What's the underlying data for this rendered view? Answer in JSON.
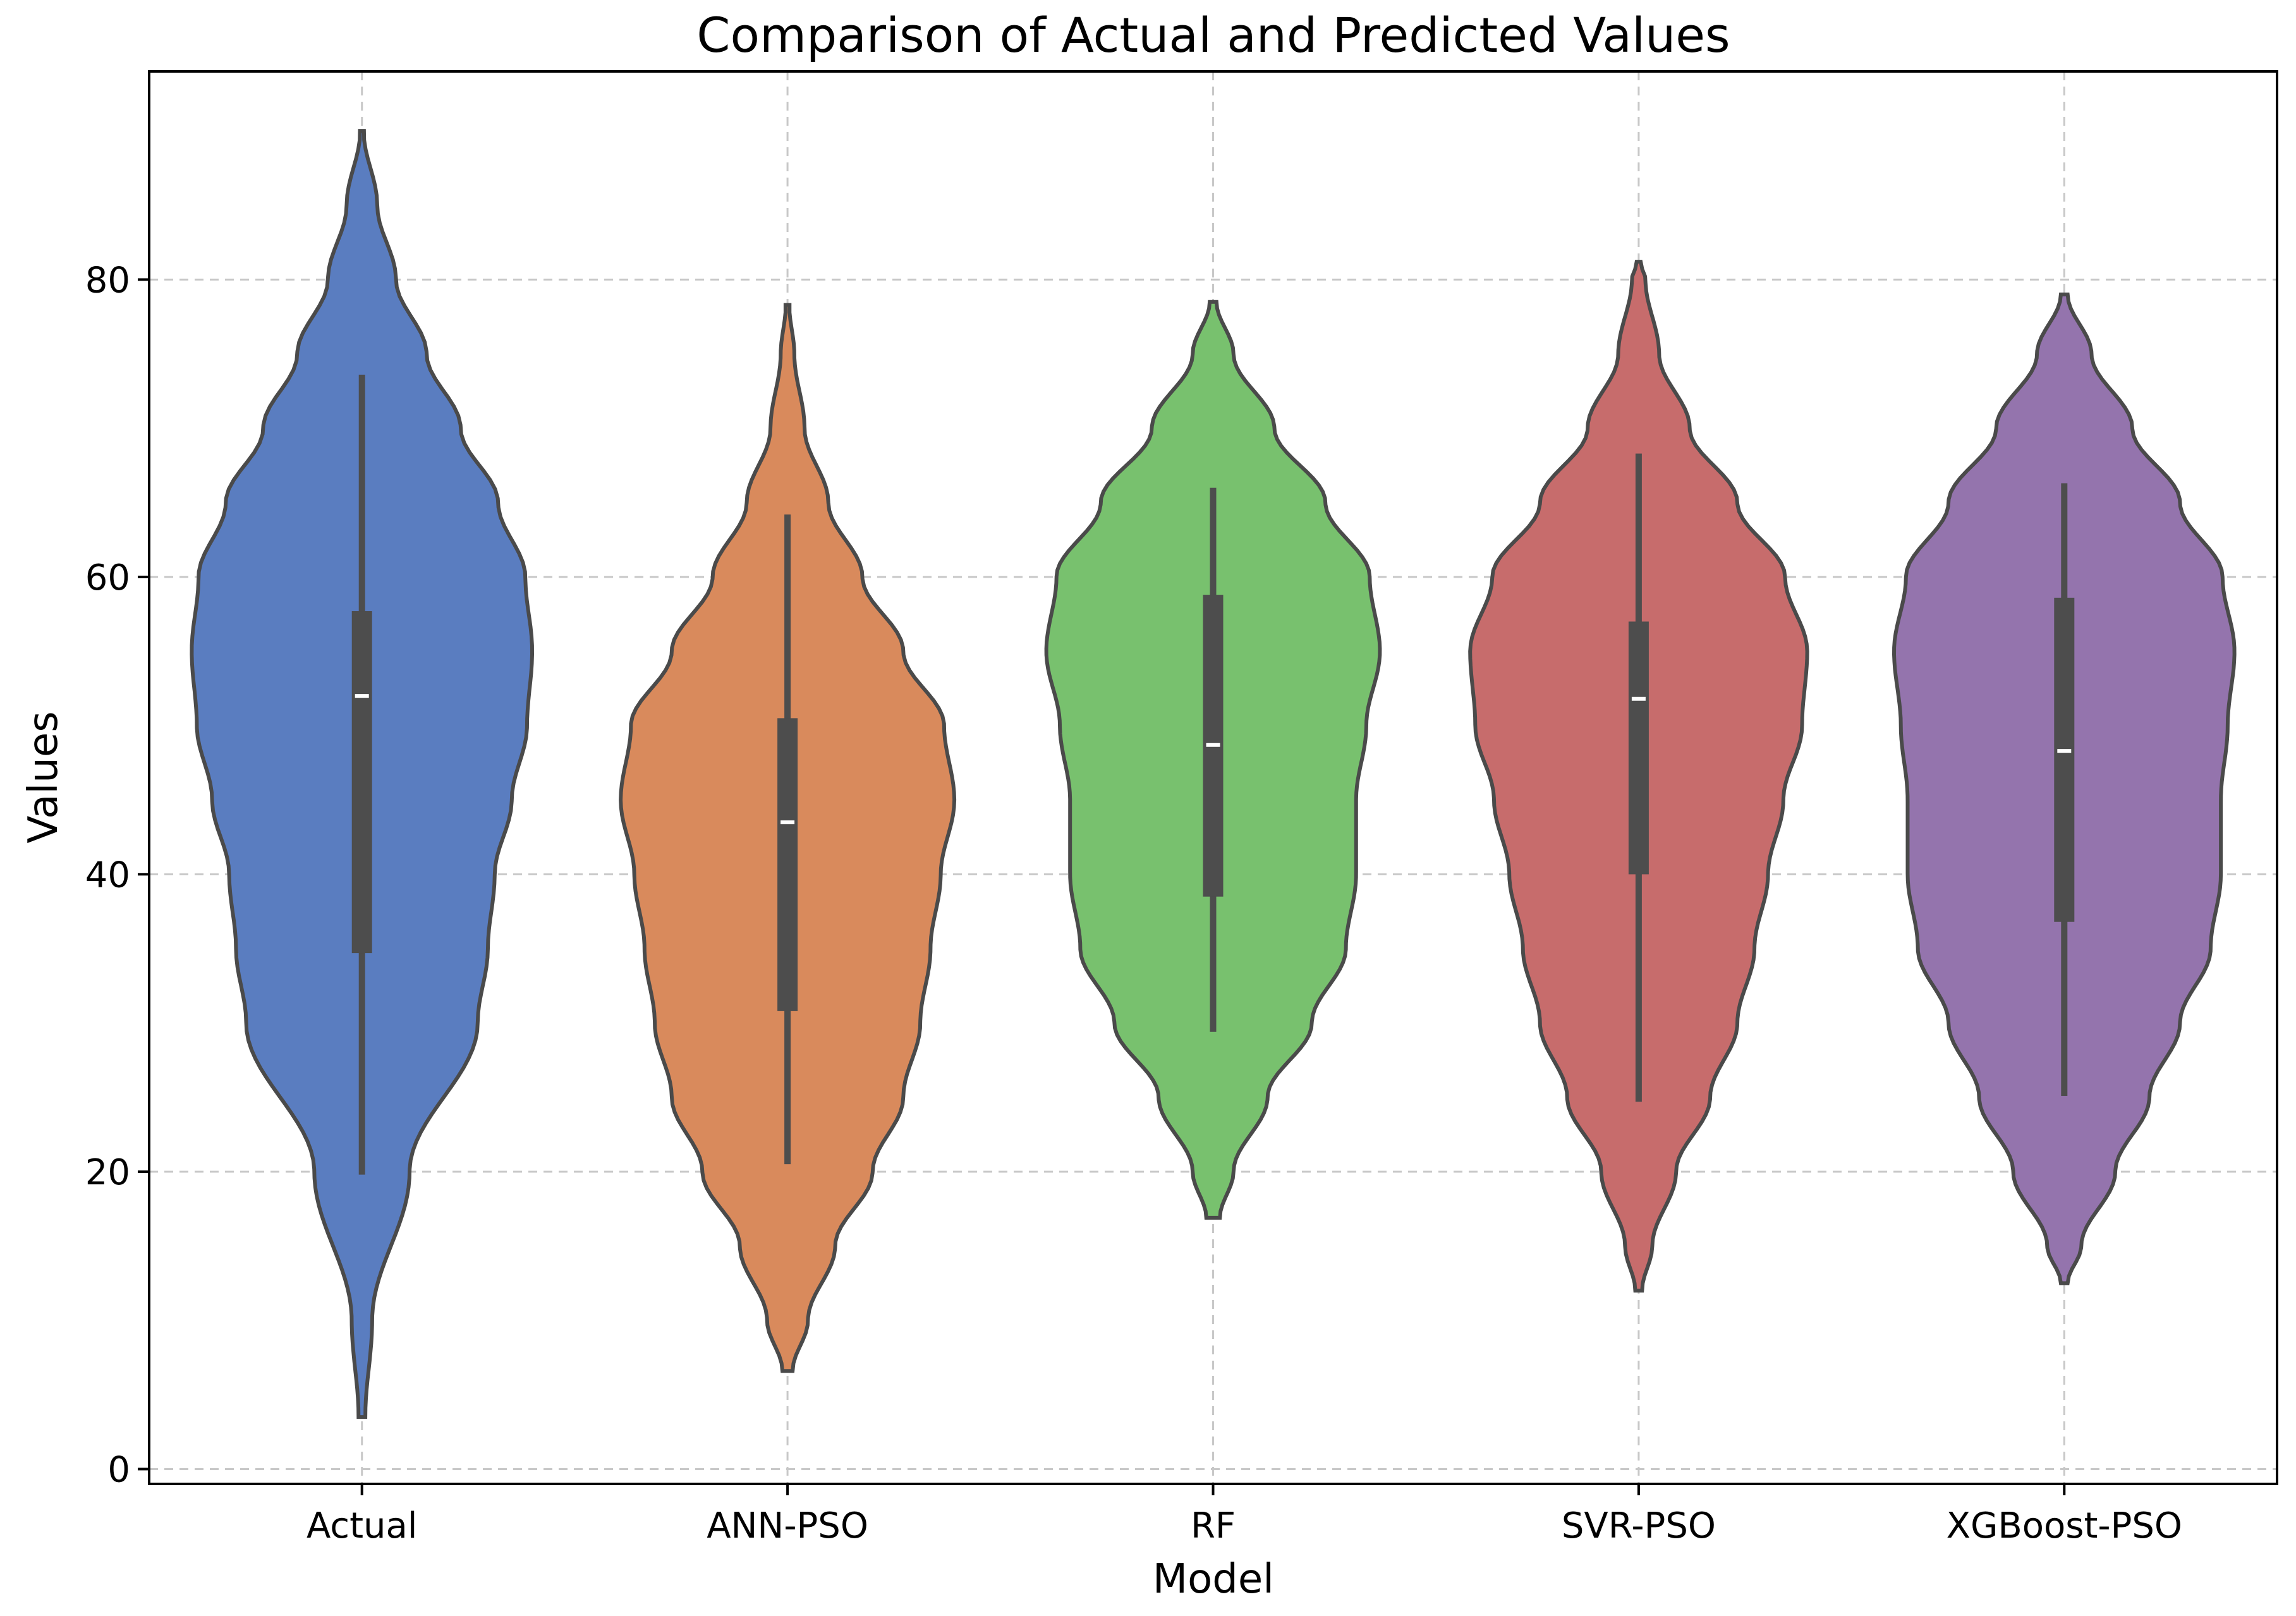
{
  "chart_data": {
    "type": "violin",
    "title": "Comparison of Actual and Predicted Values",
    "xlabel": "Model",
    "ylabel": "Values",
    "ylim": [
      -1,
      94
    ],
    "yticks": [
      0,
      20,
      40,
      60,
      80
    ],
    "grid": true,
    "categories": [
      "Actual",
      "ANN-PSO",
      "RF",
      "SVR-PSO",
      "XGBoost-PSO"
    ],
    "series": [
      {
        "name": "Actual",
        "color": "#5a7dc0",
        "min": 3.5,
        "max": 90.0,
        "q1": 34.7,
        "median": 52.0,
        "q3": 57.7,
        "whisker_low": 19.8,
        "whisker_high": 73.6,
        "density": [
          [
            3.5,
            0.02
          ],
          [
            10,
            0.06
          ],
          [
            20,
            0.28
          ],
          [
            30,
            0.68
          ],
          [
            35,
            0.74
          ],
          [
            40,
            0.78
          ],
          [
            45,
            0.88
          ],
          [
            50,
            0.97
          ],
          [
            55,
            1.0
          ],
          [
            60,
            0.96
          ],
          [
            65,
            0.8
          ],
          [
            70,
            0.58
          ],
          [
            75,
            0.38
          ],
          [
            80,
            0.2
          ],
          [
            85,
            0.09
          ],
          [
            90,
            0.01
          ]
        ]
      },
      {
        "name": "ANN-PSO",
        "color": "#d98a5c",
        "min": 6.6,
        "max": 78.3,
        "q1": 30.8,
        "median": 43.5,
        "q3": 50.5,
        "whisker_low": 20.5,
        "whisker_high": 64.2,
        "density": [
          [
            6.6,
            0.03
          ],
          [
            10,
            0.12
          ],
          [
            15,
            0.28
          ],
          [
            20,
            0.5
          ],
          [
            25,
            0.68
          ],
          [
            30,
            0.78
          ],
          [
            35,
            0.84
          ],
          [
            40,
            0.9
          ],
          [
            45,
            0.98
          ],
          [
            50,
            0.92
          ],
          [
            55,
            0.68
          ],
          [
            60,
            0.44
          ],
          [
            65,
            0.24
          ],
          [
            70,
            0.1
          ],
          [
            75,
            0.04
          ],
          [
            78.3,
            0.01
          ]
        ]
      },
      {
        "name": "RF",
        "color": "#78c16e",
        "min": 16.9,
        "max": 78.5,
        "q1": 38.5,
        "median": 48.7,
        "q3": 58.8,
        "whisker_low": 29.4,
        "whisker_high": 66.0,
        "density": [
          [
            16.9,
            0.04
          ],
          [
            20,
            0.12
          ],
          [
            25,
            0.32
          ],
          [
            30,
            0.58
          ],
          [
            35,
            0.78
          ],
          [
            40,
            0.84
          ],
          [
            45,
            0.84
          ],
          [
            50,
            0.9
          ],
          [
            55,
            0.98
          ],
          [
            60,
            0.92
          ],
          [
            65,
            0.66
          ],
          [
            70,
            0.36
          ],
          [
            75,
            0.12
          ],
          [
            78.5,
            0.02
          ]
        ]
      },
      {
        "name": "SVR-PSO",
        "color": "#c76c6c",
        "min": 12.0,
        "max": 81.2,
        "q1": 40.0,
        "median": 51.8,
        "q3": 57.0,
        "whisker_low": 24.7,
        "whisker_high": 68.3,
        "density": [
          [
            12,
            0.02
          ],
          [
            15,
            0.08
          ],
          [
            20,
            0.22
          ],
          [
            25,
            0.42
          ],
          [
            30,
            0.58
          ],
          [
            35,
            0.68
          ],
          [
            40,
            0.76
          ],
          [
            45,
            0.85
          ],
          [
            50,
            0.96
          ],
          [
            55,
            0.99
          ],
          [
            60,
            0.86
          ],
          [
            65,
            0.58
          ],
          [
            70,
            0.3
          ],
          [
            75,
            0.12
          ],
          [
            80,
            0.04
          ],
          [
            81.2,
            0.01
          ]
        ]
      },
      {
        "name": "XGBoost-PSO",
        "color": "#9474ad",
        "min": 12.5,
        "max": 79.0,
        "q1": 36.8,
        "median": 48.3,
        "q3": 58.6,
        "whisker_low": 25.1,
        "whisker_high": 66.3,
        "density": [
          [
            12.5,
            0.02
          ],
          [
            15,
            0.1
          ],
          [
            20,
            0.3
          ],
          [
            25,
            0.5
          ],
          [
            30,
            0.68
          ],
          [
            35,
            0.86
          ],
          [
            40,
            0.92
          ],
          [
            45,
            0.92
          ],
          [
            50,
            0.96
          ],
          [
            55,
            1.0
          ],
          [
            60,
            0.93
          ],
          [
            65,
            0.68
          ],
          [
            70,
            0.4
          ],
          [
            75,
            0.16
          ],
          [
            79,
            0.02
          ]
        ]
      }
    ]
  }
}
